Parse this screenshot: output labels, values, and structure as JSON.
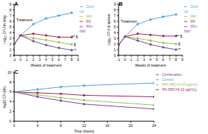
{
  "chart_data": [
    {
      "type": "line",
      "title": "A",
      "x_label": "Weeks of treatment",
      "y_label": "Log₁₀ CFU in lung",
      "x": [
        -1,
        0,
        2,
        4,
        6,
        8
      ],
      "xlim": [
        -1,
        9
      ],
      "xticks": [
        -1,
        0,
        1,
        2,
        3,
        4,
        5,
        6,
        7,
        8,
        9
      ],
      "ylim": [
        0,
        9
      ],
      "yticks": [
        0,
        1,
        2,
        3,
        4,
        5,
        6,
        7,
        8,
        9
      ],
      "legend": "right",
      "series": [
        {
          "name": "Control",
          "color": "#4f9fd8",
          "values": [
            2.0,
            3.5,
            5.5,
            6.5,
            7.0,
            7.5
          ]
        },
        {
          "name": "XN",
          "color": "#a0204e",
          "values": [
            2.0,
            3.5,
            3.8,
            3.5,
            3.2,
            3.2
          ]
        },
        {
          "name": "INH",
          "color": "#8fc63f",
          "values": [
            2.0,
            3.5,
            3.0,
            2.7,
            2.3,
            1.9
          ]
        },
        {
          "name": "XN+INH",
          "color": "#7a3fa0",
          "values": [
            2.0,
            3.5,
            2.5,
            1.8,
            1.3,
            0.9
          ]
        }
      ],
      "annotations": [
        {
          "text": "Treatment",
          "x": 0.6,
          "y": 6.2
        },
        {
          "text": "** $",
          "x": 8.5,
          "y": 3.2
        },
        {
          "text": "$",
          "x": 8.5,
          "y": 1.9
        },
        {
          "text": "**",
          "x": 8.5,
          "y": 0.9
        }
      ]
    },
    {
      "type": "line",
      "title": "B",
      "x_label": "Weeks of treatment",
      "y_label": "Log₁₀ CFU in spleen",
      "x": [
        -1,
        0,
        2,
        4,
        6,
        8
      ],
      "xlim": [
        -1,
        9
      ],
      "xticks": [
        -1,
        0,
        1,
        2,
        3,
        4,
        5,
        6,
        7,
        8,
        9
      ],
      "ylim": [
        0,
        9
      ],
      "yticks": [
        0,
        1,
        2,
        3,
        4,
        5,
        6,
        7,
        8,
        9
      ],
      "legend": "right",
      "series": [
        {
          "name": "Control",
          "color": "#4f9fd8",
          "values": [
            1.8,
            3.3,
            5.5,
            6.3,
            6.8,
            7.2
          ]
        },
        {
          "name": "XN",
          "color": "#a0204e",
          "values": [
            1.8,
            3.3,
            3.8,
            3.6,
            3.4,
            3.4
          ]
        },
        {
          "name": "INH",
          "color": "#8fc63f",
          "values": [
            1.8,
            3.3,
            3.0,
            2.6,
            2.2,
            2.0
          ]
        },
        {
          "name": "XN+INH",
          "color": "#7a3fa0",
          "values": [
            1.8,
            3.3,
            2.6,
            1.9,
            1.4,
            1.0
          ]
        }
      ],
      "annotations": [
        {
          "text": "Treatment",
          "x": 0.6,
          "y": 6.0
        },
        {
          "text": "** $",
          "x": 8.5,
          "y": 3.4
        },
        {
          "text": "$",
          "x": 8.5,
          "y": 2.0
        },
        {
          "text": "**",
          "x": 8.5,
          "y": 1.0
        }
      ]
    },
    {
      "type": "line",
      "title": "C",
      "x_label": "Time (hours)",
      "y_label": "log10 CFU/mL",
      "x": [
        0,
        4,
        8,
        12,
        24
      ],
      "xlim": [
        0,
        24
      ],
      "xticks": [
        0,
        4,
        8,
        12,
        16,
        20,
        24
      ],
      "ylim": [
        0,
        10
      ],
      "yticks": [
        0,
        2,
        4,
        6,
        8,
        10
      ],
      "legend": "right",
      "series": [
        {
          "name": "Control",
          "color": "#4f9fd8",
          "values": [
            6.0,
            6.5,
            7.0,
            7.3,
            7.8
          ]
        },
        {
          "name": "XN (MIC=0.12 μg/mL)",
          "color": "#a0204e",
          "values": [
            6.0,
            5.8,
            5.6,
            5.3,
            5.0
          ]
        },
        {
          "name": "INH (MIC=0.03 μg/mL)",
          "color": "#8fc63f",
          "values": [
            6.0,
            5.4,
            4.8,
            4.3,
            3.3
          ]
        },
        {
          "name": "Combination",
          "color": "#7a3fa0",
          "values": [
            6.0,
            5.0,
            4.2,
            3.5,
            2.5
          ]
        }
      ],
      "annotations": []
    }
  ]
}
